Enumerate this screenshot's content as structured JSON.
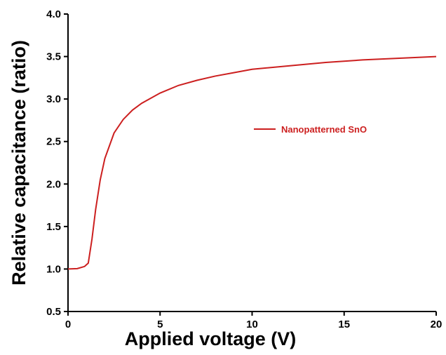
{
  "chart_data": {
    "type": "line",
    "xlabel": "Applied voltage (V)",
    "ylabel": "Relative capacitance (ratio)",
    "x": [
      0,
      0.5,
      0.9,
      1.1,
      1.3,
      1.5,
      1.75,
      2,
      2.5,
      3,
      3.5,
      4,
      5,
      6,
      7,
      8,
      9,
      10,
      12,
      14,
      16,
      18,
      20
    ],
    "series": [
      {
        "name": "Nanopatterned SnO",
        "color": "#cc1f1f",
        "values": [
          1.0,
          1.005,
          1.03,
          1.07,
          1.35,
          1.7,
          2.05,
          2.3,
          2.6,
          2.76,
          2.87,
          2.95,
          3.07,
          3.16,
          3.22,
          3.27,
          3.31,
          3.35,
          3.39,
          3.43,
          3.46,
          3.48,
          3.5
        ]
      }
    ],
    "xlim": [
      0,
      20
    ],
    "xticks": [
      0,
      5,
      10,
      15,
      20
    ],
    "ylim": [
      0.5,
      4.0
    ],
    "yticks": [
      0.5,
      {
        "value": 1,
        "label": "1.0"
      },
      1.5,
      {
        "value": 2,
        "label": "2.0"
      },
      2.5,
      {
        "value": 3,
        "label": "3.0"
      },
      3.5,
      {
        "value": 4,
        "label": "4.0"
      }
    ]
  }
}
